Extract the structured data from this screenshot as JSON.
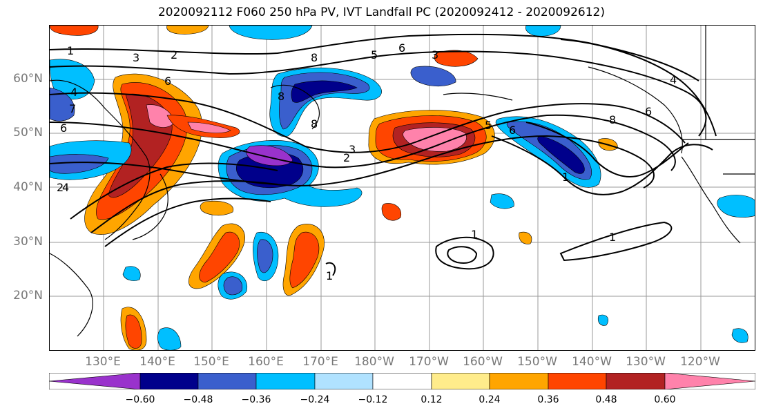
{
  "title": "2020092112 F060 250 hPa PV, IVT Landfall PC (2020092412 - 2020092612)",
  "lat_labels": [
    "60°N",
    "50°N",
    "40°N",
    "30°N",
    "20°N"
  ],
  "lon_labels": [
    "130°E",
    "140°E",
    "150°E",
    "160°E",
    "170°E",
    "180°W",
    "170°W",
    "160°W",
    "150°W",
    "140°W",
    "130°W",
    "120°W"
  ],
  "contour_labels": [
    "1",
    "3",
    "2",
    "8",
    "5",
    "6",
    "3",
    "6",
    "4",
    "7",
    "6",
    "8",
    "8",
    "6",
    "5",
    "3",
    "2",
    "8",
    "6",
    "4",
    "1",
    "1",
    "1",
    "1",
    "2",
    "4"
  ],
  "colorbar": {
    "ticks": [
      "−0.60",
      "−0.48",
      "−0.36",
      "−0.24",
      "−0.12",
      "0.12",
      "0.24",
      "0.36",
      "0.48",
      "0.60"
    ],
    "colors": [
      "#9932CC",
      "#00008B",
      "#3A5FCD",
      "#00BFFF",
      "#B0E2FF",
      "#FFFFFF",
      "#FFEC8B",
      "#FFA500",
      "#FF4500",
      "#B22222",
      "#FF82AB"
    ]
  }
}
